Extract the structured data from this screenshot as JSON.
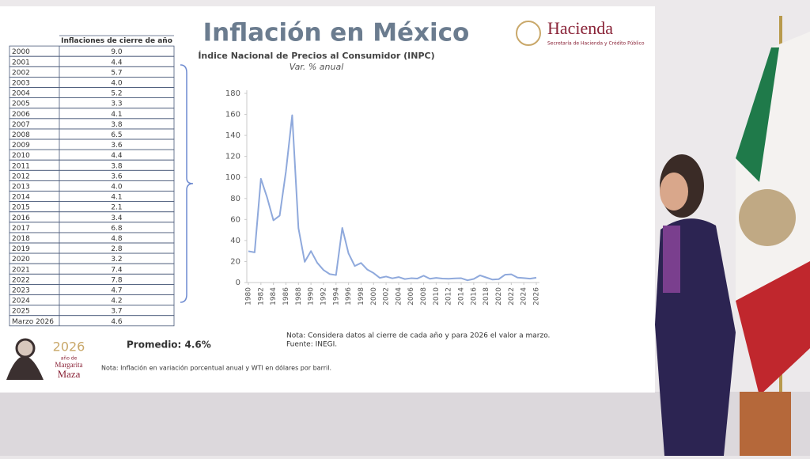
{
  "header": {
    "title": "Inflación en México",
    "brand": "Hacienda",
    "brand_subtitle": "Secretaría de Hacienda y Crédito Público"
  },
  "table": {
    "header": "Inflaciones de cierre de año",
    "rows": [
      [
        "2000",
        "9.0"
      ],
      [
        "2001",
        "4.4"
      ],
      [
        "2002",
        "5.7"
      ],
      [
        "2003",
        "4.0"
      ],
      [
        "2004",
        "5.2"
      ],
      [
        "2005",
        "3.3"
      ],
      [
        "2006",
        "4.1"
      ],
      [
        "2007",
        "3.8"
      ],
      [
        "2008",
        "6.5"
      ],
      [
        "2009",
        "3.6"
      ],
      [
        "2010",
        "4.4"
      ],
      [
        "2011",
        "3.8"
      ],
      [
        "2012",
        "3.6"
      ],
      [
        "2013",
        "4.0"
      ],
      [
        "2014",
        "4.1"
      ],
      [
        "2015",
        "2.1"
      ],
      [
        "2016",
        "3.4"
      ],
      [
        "2017",
        "6.8"
      ],
      [
        "2018",
        "4.8"
      ],
      [
        "2019",
        "2.8"
      ],
      [
        "2020",
        "3.2"
      ],
      [
        "2021",
        "7.4"
      ],
      [
        "2022",
        "7.8"
      ],
      [
        "2023",
        "4.7"
      ],
      [
        "2024",
        "4.2"
      ],
      [
        "2025",
        "3.7"
      ],
      [
        "Marzo 2026",
        "4.6"
      ]
    ]
  },
  "average": "Promedio: 4.6%",
  "footer": {
    "note": "Nota: Inflación en variación porcentual anual y WTI en dólares por barril.",
    "logo_year": "2026",
    "logo_line1": "año de",
    "logo_line2": "Margarita",
    "logo_line3": "Maza"
  },
  "chart_data": {
    "type": "line",
    "title": "Índice Nacional de Precios al Consumidor (INPC)",
    "subtitle": "Var. % anual",
    "x": [
      1980,
      1981,
      1982,
      1983,
      1984,
      1985,
      1986,
      1987,
      1988,
      1989,
      1990,
      1991,
      1992,
      1993,
      1994,
      1995,
      1996,
      1997,
      1998,
      1999,
      2000,
      2001,
      2002,
      2003,
      2004,
      2005,
      2006,
      2007,
      2008,
      2009,
      2010,
      2011,
      2012,
      2013,
      2014,
      2015,
      2016,
      2017,
      2018,
      2019,
      2020,
      2021,
      2022,
      2023,
      2024,
      2025,
      2026
    ],
    "values": [
      29.8,
      28.7,
      98.8,
      80.8,
      59.2,
      63.7,
      105.7,
      159.2,
      51.7,
      19.7,
      29.9,
      18.8,
      11.9,
      8.0,
      7.1,
      52.0,
      27.7,
      15.7,
      18.6,
      12.3,
      9.0,
      4.4,
      5.7,
      4.0,
      5.2,
      3.3,
      4.1,
      3.8,
      6.5,
      3.6,
      4.4,
      3.8,
      3.6,
      4.0,
      4.1,
      2.1,
      3.4,
      6.8,
      4.8,
      2.8,
      3.2,
      7.4,
      7.8,
      4.7,
      4.2,
      3.7,
      4.6
    ],
    "color": "#8fa9dc",
    "xlim": [
      1980,
      2026
    ],
    "xticks": [
      1980,
      1982,
      1984,
      1986,
      1988,
      1990,
      1992,
      1994,
      1996,
      1998,
      2000,
      2002,
      2004,
      2006,
      2008,
      2010,
      2012,
      2014,
      2016,
      2018,
      2020,
      2022,
      2024,
      2026
    ],
    "ylim": [
      0,
      180
    ],
    "yticks": [
      0,
      20,
      40,
      60,
      80,
      100,
      120,
      140,
      160,
      180
    ],
    "notes": [
      "Nota: Considera datos al cierre de cada año y para 2026 el valor a marzo.",
      "Fuente: INEGI."
    ]
  }
}
